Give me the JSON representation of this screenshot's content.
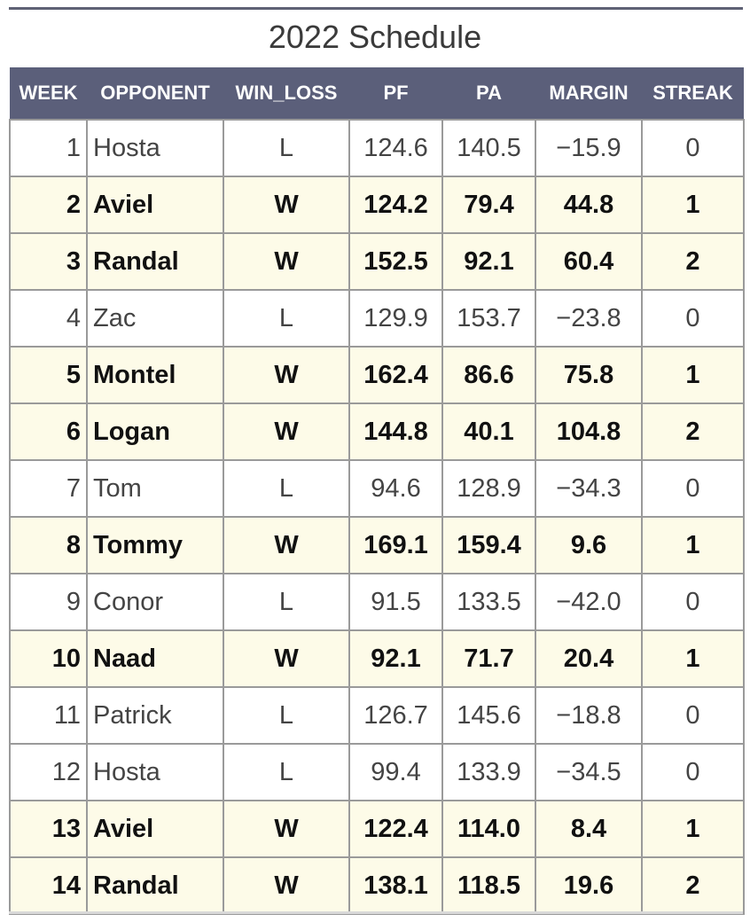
{
  "title": "2022 Schedule",
  "columns": [
    "WEEK",
    "OPPONENT",
    "WIN_LOSS",
    "PF",
    "PA",
    "MARGIN",
    "STREAK"
  ],
  "rows": [
    {
      "week": "1",
      "opponent": "Hosta",
      "win_loss": "L",
      "pf": "124.6",
      "pa": "140.5",
      "margin": "−15.9",
      "streak": "0"
    },
    {
      "week": "2",
      "opponent": "Aviel",
      "win_loss": "W",
      "pf": "124.2",
      "pa": "79.4",
      "margin": "44.8",
      "streak": "1"
    },
    {
      "week": "3",
      "opponent": "Randal",
      "win_loss": "W",
      "pf": "152.5",
      "pa": "92.1",
      "margin": "60.4",
      "streak": "2"
    },
    {
      "week": "4",
      "opponent": "Zac",
      "win_loss": "L",
      "pf": "129.9",
      "pa": "153.7",
      "margin": "−23.8",
      "streak": "0"
    },
    {
      "week": "5",
      "opponent": "Montel",
      "win_loss": "W",
      "pf": "162.4",
      "pa": "86.6",
      "margin": "75.8",
      "streak": "1"
    },
    {
      "week": "6",
      "opponent": "Logan",
      "win_loss": "W",
      "pf": "144.8",
      "pa": "40.1",
      "margin": "104.8",
      "streak": "2"
    },
    {
      "week": "7",
      "opponent": "Tom",
      "win_loss": "L",
      "pf": "94.6",
      "pa": "128.9",
      "margin": "−34.3",
      "streak": "0"
    },
    {
      "week": "8",
      "opponent": "Tommy",
      "win_loss": "W",
      "pf": "169.1",
      "pa": "159.4",
      "margin": "9.6",
      "streak": "1"
    },
    {
      "week": "9",
      "opponent": "Conor",
      "win_loss": "L",
      "pf": "91.5",
      "pa": "133.5",
      "margin": "−42.0",
      "streak": "0"
    },
    {
      "week": "10",
      "opponent": "Naad",
      "win_loss": "W",
      "pf": "92.1",
      "pa": "71.7",
      "margin": "20.4",
      "streak": "1"
    },
    {
      "week": "11",
      "opponent": "Patrick",
      "win_loss": "L",
      "pf": "126.7",
      "pa": "145.6",
      "margin": "−18.8",
      "streak": "0"
    },
    {
      "week": "12",
      "opponent": "Hosta",
      "win_loss": "L",
      "pf": "99.4",
      "pa": "133.9",
      "margin": "−34.5",
      "streak": "0"
    },
    {
      "week": "13",
      "opponent": "Aviel",
      "win_loss": "W",
      "pf": "122.4",
      "pa": "114.0",
      "margin": "8.4",
      "streak": "1"
    },
    {
      "week": "14",
      "opponent": "Randal",
      "win_loss": "W",
      "pf": "138.1",
      "pa": "118.5",
      "margin": "19.6",
      "streak": "2"
    }
  ],
  "colors": {
    "header_bg": "#5b5f7a",
    "win_row_bg": "#fdfbe8",
    "loss_row_bg": "#ffffff",
    "border": "#9a9a9a"
  }
}
